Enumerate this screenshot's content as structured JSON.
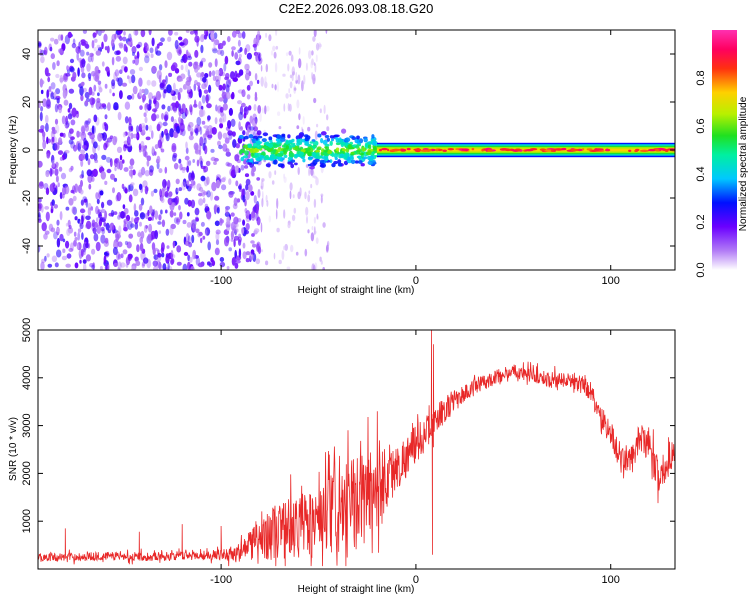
{
  "figure_title": "C2E2.2026.093.08.18.G20",
  "colors": {
    "line": "#e82828",
    "axis": "#000000",
    "background": "#ffffff"
  },
  "chart_data": [
    {
      "type": "heatmap",
      "title": "C2E2.2026.093.08.18.G20",
      "xlabel": "Height of straight line (km)",
      "ylabel": "Frequency (Hz)",
      "xlim": [
        -194,
        133
      ],
      "ylim": [
        -50,
        50
      ],
      "x_ticks": [
        -100,
        0,
        100
      ],
      "x_tick_labels": [
        "-100",
        "0",
        "100"
      ],
      "y_ticks": [
        -40,
        -20,
        0,
        20,
        40
      ],
      "y_tick_labels": [
        "-40",
        "-20",
        "0",
        "20",
        "40"
      ],
      "colorbar": {
        "label": "Normalized spectral amplitude",
        "range": [
          0,
          1
        ],
        "ticks": [
          0.0,
          0.2,
          0.4,
          0.6,
          0.8
        ],
        "tick_labels": [
          "0.0",
          "0.2",
          "0.4",
          "0.6",
          "0.8"
        ],
        "colormap": "rainbow (white-violet-blue-cyan-green-yellow-orange-red-magenta)"
      },
      "regions": [
        {
          "name": "noise",
          "x_range": [
            -194,
            -80
          ],
          "freq_range": [
            -50,
            50
          ],
          "amplitude": [
            0.05,
            0.25
          ]
        },
        {
          "name": "sparse-noise",
          "x_range": [
            -80,
            -45
          ],
          "freq_range": [
            -50,
            50
          ],
          "amplitude": [
            0.02,
            0.1
          ]
        },
        {
          "name": "signal-broad",
          "x_range": [
            -90,
            -20
          ],
          "freq_center": 0,
          "freq_width": 8,
          "amplitude": [
            0.3,
            0.6
          ]
        },
        {
          "name": "signal-core",
          "x_range": [
            -20,
            133
          ],
          "freq_center": 0,
          "freq_width": 3,
          "amplitude": [
            0.5,
            0.95
          ]
        }
      ]
    },
    {
      "type": "line",
      "xlabel": "Height of straight line (km)",
      "ylabel": "SNR (10 * v/v)",
      "xlim": [
        -194,
        133
      ],
      "ylim": [
        0,
        5000
      ],
      "x_ticks": [
        -100,
        0,
        100
      ],
      "x_tick_labels": [
        "-100",
        "0",
        "100"
      ],
      "y_ticks": [
        1000,
        2000,
        3000,
        4000,
        5000
      ],
      "y_tick_labels": [
        "1000",
        "2000",
        "3000",
        "4000",
        "5000"
      ],
      "series": [
        {
          "name": "SNR",
          "x": [
            -194,
            -180,
            -160,
            -140,
            -120,
            -100,
            -90,
            -85,
            -80,
            -70,
            -60,
            -50,
            -40,
            -30,
            -25,
            -20,
            -10,
            0,
            5,
            10,
            15,
            20,
            30,
            40,
            50,
            60,
            70,
            80,
            85,
            90,
            95,
            100,
            105,
            110,
            115,
            120,
            125,
            130,
            133
          ],
          "y": [
            250,
            250,
            270,
            260,
            280,
            300,
            350,
            500,
            700,
            800,
            900,
            1000,
            1150,
            1400,
            1600,
            1750,
            2100,
            2600,
            2850,
            3100,
            3350,
            3550,
            3800,
            4000,
            4150,
            4050,
            3950,
            3950,
            3900,
            3700,
            3200,
            2850,
            2300,
            2250,
            2750,
            2500,
            1900,
            2300,
            2600
          ],
          "spread": [
            120,
            120,
            130,
            130,
            130,
            150,
            300,
            500,
            700,
            900,
            1000,
            1100,
            1300,
            1400,
            1500,
            1500,
            700,
            600,
            500,
            400,
            400,
            300,
            250,
            220,
            200,
            220,
            240,
            260,
            280,
            300,
            350,
            400,
            400,
            400,
            450,
            500,
            500,
            500,
            500
          ],
          "spikes": [
            {
              "x": -180,
              "y": 850
            },
            {
              "x": -142,
              "y": 780
            },
            {
              "x": -120,
              "y": 940
            },
            {
              "x": -100,
              "y": 900
            },
            {
              "x": 8,
              "y": 5000
            },
            {
              "x": 9,
              "y": 4700
            },
            {
              "x": 8.5,
              "y": 300
            }
          ]
        }
      ]
    }
  ]
}
